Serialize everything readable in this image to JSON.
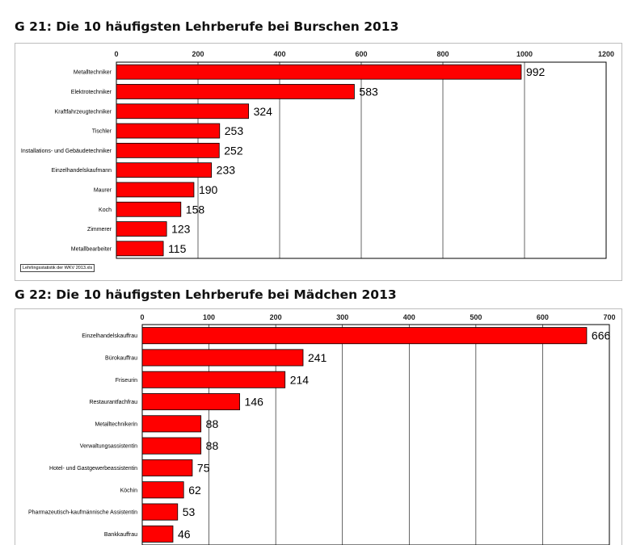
{
  "chart_data": [
    {
      "type": "bar",
      "orientation": "horizontal",
      "title": "G 21: Die 10 häufigsten Lehrberufe bei Burschen 2013",
      "categories": [
        "Metalltechniker",
        "Elektrotechniker",
        "Kraftfahrzeugtechniker",
        "Tischler",
        "Installations- und Gebäudetechniker",
        "Einzelhandelskaufmann",
        "Maurer",
        "Koch",
        "Zimmerer",
        "Metallbearbeiter"
      ],
      "values": [
        992,
        583,
        324,
        253,
        252,
        233,
        190,
        158,
        123,
        115
      ],
      "xlim": [
        0,
        1200
      ],
      "xticks": [
        0,
        200,
        400,
        600,
        800,
        1000,
        1200
      ],
      "grid": true,
      "bar_color": "#ff0000",
      "source": "Lehrlingsstatistik der WKV 2013.xls"
    },
    {
      "type": "bar",
      "orientation": "horizontal",
      "title": "G 22: Die 10 häufigsten Lehrberufe bei Mädchen 2013",
      "categories": [
        "Einzelhandelskauffrau",
        "Bürokauffrau",
        "Friseurin",
        "Restaurantfachfrau",
        "Metalltechnikerin",
        "Verwaltungsassistentin",
        "Hotel- und Gastgewerbeassistentin",
        "Köchin",
        "Pharmazeutisch-kaufmännische Assistentin",
        "Bankkauffrau"
      ],
      "values": [
        666,
        241,
        214,
        146,
        88,
        88,
        75,
        62,
        53,
        46
      ],
      "xlim": [
        0,
        700
      ],
      "xticks": [
        0,
        100,
        200,
        300,
        400,
        500,
        600,
        700
      ],
      "grid": true,
      "bar_color": "#ff0000"
    }
  ]
}
